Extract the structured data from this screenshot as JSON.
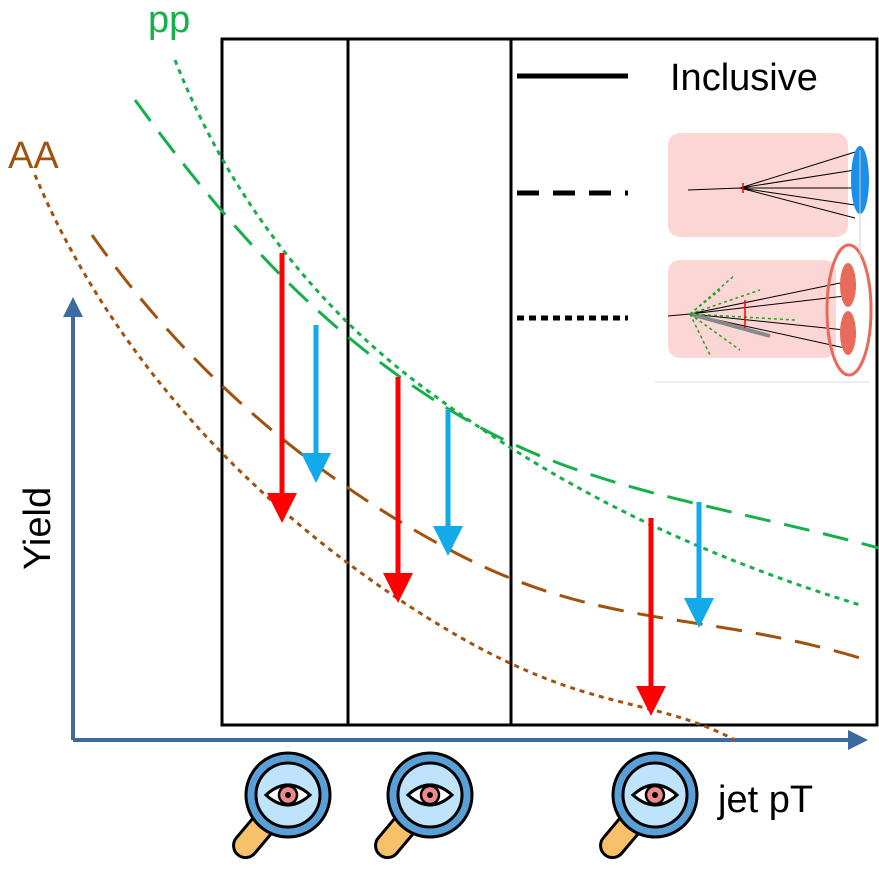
{
  "labels": {
    "pp": "pp",
    "aa": "AA",
    "legend_inclusive": "Inclusive",
    "y_axis": "Yield",
    "x_axis": "jet pT"
  }
}
